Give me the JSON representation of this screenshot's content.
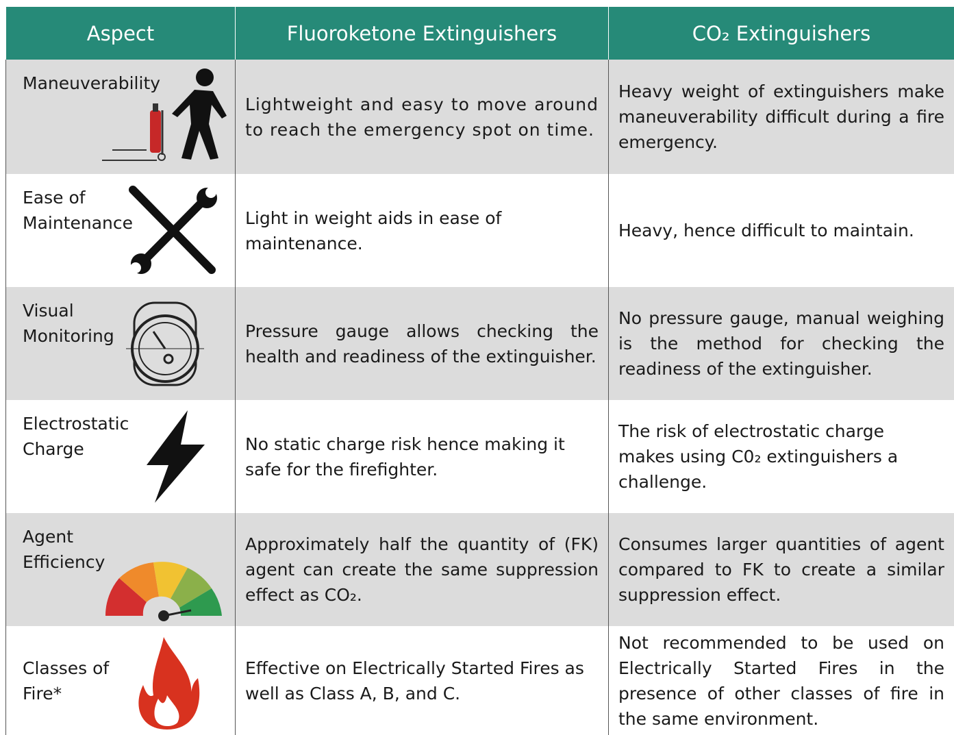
{
  "table": {
    "header": [
      "Aspect",
      "Fluoroketone Extinguishers",
      "CO₂ Extinguishers"
    ],
    "rows": [
      [
        "Maneuverability",
        "Lightweight and easy to move around to reach the emergency spot on time.",
        "Heavy weight of extinguishers make maneuverability difficult during a fire emergency."
      ],
      [
        "Ease of Maintenance",
        "Light in weight aids in ease of maintenance.",
        "Heavy, hence difficult to maintain."
      ],
      [
        "Visual Monitoring",
        "Pressure gauge allows checking the health and readiness of the extinguisher.",
        "No pressure gauge, manual weighing is the method for checking the readiness of the extinguisher."
      ],
      [
        "Electrostatic Charge",
        "No static charge risk hence making it safe for the firefighter.",
        "The risk of electrostatic charge makes using C0₂ extinguishers a challenge."
      ],
      [
        "Agent Efficiency",
        "Approximately half the quantity of (FK) agent can create the same suppression effect as CO₂.",
        "Consumes larger quantities of agent compared to FK to create a similar suppression effect."
      ],
      [
        "Classes of Fire*",
        "Effective on Electrically Started Fires as well as Class A, B, and C.",
        "Not recommended to be used on Electrically Started Fires in the presence of other classes of fire in the same environment."
      ]
    ]
  }
}
